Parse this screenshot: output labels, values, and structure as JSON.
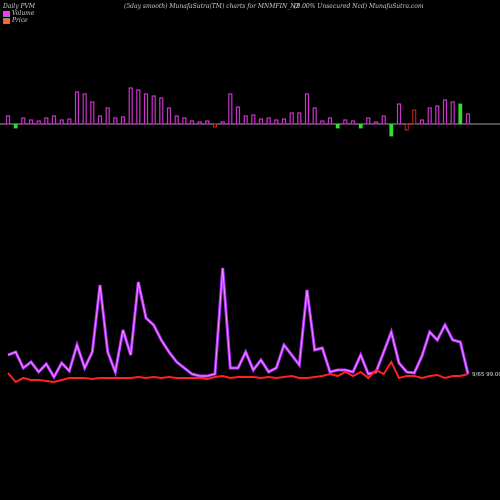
{
  "header": {
    "left": "Daily PVM",
    "middle": "(5day smooth) MunafaSutra(TM) charts for MNMFIN_N2",
    "right": "(9.00% Unsecured Ncd) MunafaSutra.com"
  },
  "chart_data": {
    "type": "bar+line",
    "legend": [
      {
        "label": "Volume",
        "color": "#ff33ff"
      },
      {
        "label": "Price",
        "color": "#ff6a2a"
      }
    ],
    "colors": {
      "volume_up": "#cc33cc",
      "volume_down_red": "#ff2a2a",
      "volume_down_green": "#33dd33",
      "baseline": "#dddddd",
      "volume_line_outer": "#aa33ff",
      "volume_line_inner": "#ff88ff",
      "price_line": "#ff2222"
    },
    "volume_bars": {
      "heights": [
        8,
        -4,
        6,
        4,
        3,
        6,
        8,
        4,
        5,
        32,
        30,
        22,
        8,
        16,
        6,
        7,
        36,
        34,
        30,
        28,
        26,
        16,
        8,
        6,
        3,
        2,
        3,
        -3,
        2,
        30,
        17,
        8,
        9,
        5,
        6,
        4,
        5,
        11,
        11,
        30,
        16,
        3,
        6,
        -4,
        4,
        3,
        -4,
        6,
        2,
        8,
        -12,
        20,
        -6,
        14,
        4,
        16,
        18,
        24,
        22,
        20,
        10
      ],
      "colors": [
        "magenta",
        "green",
        "magenta",
        "magenta",
        "magenta",
        "magenta",
        "magenta",
        "magenta",
        "magenta",
        "magenta",
        "magenta",
        "magenta",
        "magenta",
        "magenta",
        "magenta",
        "magenta",
        "magenta",
        "magenta",
        "magenta",
        "magenta",
        "magenta",
        "magenta",
        "magenta",
        "magenta",
        "magenta",
        "magenta",
        "magenta",
        "red",
        "magenta",
        "magenta",
        "magenta",
        "magenta",
        "magenta",
        "magenta",
        "magenta",
        "magenta",
        "magenta",
        "magenta",
        "magenta",
        "magenta",
        "magenta",
        "magenta",
        "magenta",
        "green",
        "magenta",
        "magenta",
        "green",
        "magenta",
        "magenta",
        "magenta",
        "green",
        "magenta",
        "red",
        "red",
        "magenta",
        "magenta",
        "magenta",
        "magenta",
        "magenta",
        "green",
        "magenta"
      ]
    },
    "volume_line": [
      355,
      352,
      368,
      362,
      372,
      364,
      377,
      363,
      371,
      345,
      368,
      352,
      285,
      352,
      372,
      330,
      355,
      282,
      318,
      325,
      340,
      352,
      362,
      368,
      374,
      376,
      376,
      374,
      268,
      368,
      368,
      352,
      370,
      360,
      372,
      368,
      345,
      355,
      365,
      290,
      350,
      348,
      372,
      370,
      370,
      372,
      355,
      374,
      372,
      352,
      332,
      363,
      372,
      373,
      356,
      332,
      340,
      325,
      340,
      342,
      374
    ],
    "price_line": [
      373,
      382,
      378,
      380,
      380,
      381,
      382,
      380,
      378,
      378,
      378,
      379,
      378,
      378,
      378,
      378,
      378,
      377,
      378,
      377,
      378,
      377,
      378,
      378,
      378,
      378,
      379,
      377,
      376,
      378,
      377,
      377,
      377,
      378,
      377,
      378,
      377,
      376,
      378,
      378,
      377,
      376,
      374,
      376,
      372,
      376,
      372,
      378,
      370,
      374,
      362,
      378,
      376,
      376,
      378,
      376,
      375,
      378,
      376,
      376,
      374
    ],
    "price_label": "99.00",
    "price_label_prefix": "9/65"
  }
}
